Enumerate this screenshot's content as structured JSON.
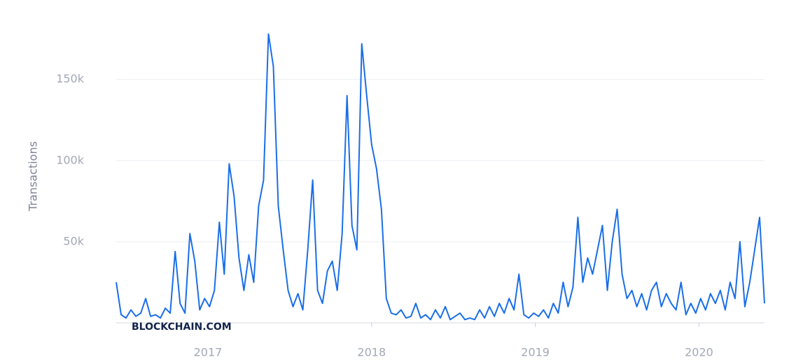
{
  "chart_data": {
    "type": "line",
    "y_label": "Transactions",
    "watermark": "BLOCKCHAIN.COM",
    "color": "#1a6ee8",
    "x": [
      2016.44,
      2016.47,
      2016.5,
      2016.53,
      2016.56,
      2016.59,
      2016.62,
      2016.65,
      2016.68,
      2016.71,
      2016.74,
      2016.77,
      2016.8,
      2016.83,
      2016.86,
      2016.89,
      2016.92,
      2016.95,
      2016.98,
      2017.01,
      2017.04,
      2017.07,
      2017.1,
      2017.13,
      2017.16,
      2017.19,
      2017.22,
      2017.25,
      2017.28,
      2017.31,
      2017.34,
      2017.37,
      2017.4,
      2017.43,
      2017.46,
      2017.49,
      2017.52,
      2017.55,
      2017.58,
      2017.61,
      2017.64,
      2017.67,
      2017.7,
      2017.73,
      2017.76,
      2017.79,
      2017.82,
      2017.85,
      2017.88,
      2017.91,
      2017.94,
      2017.97,
      2018.0,
      2018.03,
      2018.06,
      2018.09,
      2018.12,
      2018.15,
      2018.18,
      2018.21,
      2018.24,
      2018.27,
      2018.3,
      2018.33,
      2018.36,
      2018.39,
      2018.42,
      2018.45,
      2018.48,
      2018.51,
      2018.54,
      2018.57,
      2018.6,
      2018.63,
      2018.66,
      2018.69,
      2018.72,
      2018.75,
      2018.78,
      2018.81,
      2018.84,
      2018.87,
      2018.9,
      2018.93,
      2018.96,
      2018.99,
      2019.02,
      2019.05,
      2019.08,
      2019.11,
      2019.14,
      2019.17,
      2019.2,
      2019.23,
      2019.26,
      2019.29,
      2019.32,
      2019.35,
      2019.38,
      2019.41,
      2019.44,
      2019.47,
      2019.5,
      2019.53,
      2019.56,
      2019.59,
      2019.62,
      2019.65,
      2019.68,
      2019.71,
      2019.74,
      2019.77,
      2019.8,
      2019.83,
      2019.86,
      2019.89,
      2019.92,
      2019.95,
      2019.98,
      2020.01,
      2020.04,
      2020.07,
      2020.1,
      2020.13,
      2020.16,
      2020.19,
      2020.22,
      2020.25,
      2020.28,
      2020.31,
      2020.34,
      2020.37,
      2020.4
    ],
    "values": [
      25000,
      5000,
      3000,
      8000,
      4000,
      6000,
      15000,
      4000,
      5000,
      3000,
      9000,
      6000,
      44000,
      12000,
      6000,
      55000,
      38000,
      8000,
      15000,
      10000,
      20000,
      62000,
      30000,
      98000,
      78000,
      40000,
      20000,
      42000,
      25000,
      72000,
      88000,
      178000,
      158000,
      72000,
      45000,
      20000,
      10000,
      18000,
      8000,
      45000,
      88000,
      20000,
      12000,
      32000,
      38000,
      20000,
      55000,
      140000,
      60000,
      45000,
      172000,
      140000,
      110000,
      95000,
      70000,
      15000,
      6000,
      5000,
      8000,
      3000,
      4000,
      12000,
      3000,
      5000,
      2000,
      8000,
      3000,
      10000,
      2000,
      4000,
      6000,
      2000,
      3000,
      2000,
      8000,
      3000,
      10000,
      4000,
      12000,
      6000,
      15000,
      8000,
      30000,
      5000,
      3000,
      6000,
      4000,
      8000,
      3000,
      12000,
      6000,
      25000,
      10000,
      22000,
      65000,
      25000,
      40000,
      30000,
      45000,
      60000,
      20000,
      50000,
      70000,
      30000,
      15000,
      20000,
      10000,
      18000,
      8000,
      20000,
      25000,
      10000,
      18000,
      12000,
      8000,
      25000,
      5000,
      12000,
      6000,
      15000,
      8000,
      18000,
      12000,
      20000,
      8000,
      25000,
      15000,
      50000,
      10000,
      25000,
      45000,
      65000,
      12000
    ],
    "xlim": [
      2016.44,
      2020.4
    ],
    "xticks": [
      2017,
      2018,
      2019,
      2020
    ],
    "ylim": [
      0,
      180000
    ],
    "yticks": [
      {
        "value": 50000,
        "label": "50k"
      },
      {
        "value": 100000,
        "label": "100k"
      },
      {
        "value": 150000,
        "label": "150k"
      }
    ],
    "grid": true
  }
}
